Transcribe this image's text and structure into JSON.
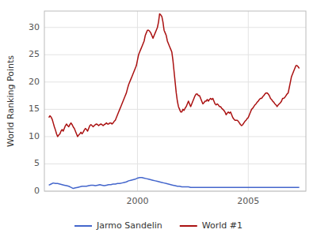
{
  "chart_data": {
    "type": "line",
    "ylabel": "World Ranking Points",
    "xlim": [
      1995.8,
      2007.6
    ],
    "xticks": [
      2000,
      2005
    ],
    "ylim": [
      0,
      33
    ],
    "yticks": [
      0,
      5,
      10,
      15,
      20,
      25,
      30
    ],
    "grid": true,
    "legend": "bottom",
    "series": [
      {
        "name": "Jarmo Sandelin",
        "color": "#4466cc",
        "x": [
          1996.0,
          1996.1,
          1996.2,
          1996.3,
          1996.4,
          1996.5,
          1996.6,
          1996.7,
          1996.8,
          1996.9,
          1997.0,
          1997.1,
          1997.2,
          1997.3,
          1997.4,
          1997.5,
          1997.6,
          1997.7,
          1997.8,
          1997.9,
          1998.0,
          1998.1,
          1998.2,
          1998.3,
          1998.4,
          1998.5,
          1998.6,
          1998.7,
          1998.8,
          1998.9,
          1999.0,
          1999.1,
          1999.2,
          1999.3,
          1999.4,
          1999.5,
          1999.6,
          1999.7,
          1999.8,
          1999.9,
          2000.0,
          2000.1,
          2000.2,
          2000.3,
          2000.4,
          2000.5,
          2000.6,
          2000.7,
          2000.8,
          2000.9,
          2001.0,
          2001.1,
          2001.2,
          2001.3,
          2001.4,
          2001.5,
          2001.6,
          2001.7,
          2001.8,
          2001.9,
          2002.0,
          2002.1,
          2002.2,
          2002.3,
          2002.4,
          2002.5,
          2002.6,
          2002.7,
          2002.8,
          2002.9,
          2003.0,
          2003.1,
          2003.2,
          2003.3,
          2003.4,
          2003.5,
          2003.6,
          2003.7,
          2003.8,
          2003.9,
          2004.0,
          2004.2,
          2004.5,
          2004.8,
          2005.0,
          2005.2,
          2005.5,
          2005.8,
          2006.0,
          2006.2,
          2006.5,
          2006.8,
          2007.0,
          2007.3
        ],
        "values": [
          1.1,
          1.3,
          1.5,
          1.4,
          1.4,
          1.3,
          1.2,
          1.1,
          1.0,
          0.9,
          0.7,
          0.5,
          0.6,
          0.7,
          0.8,
          0.9,
          0.9,
          0.9,
          1.0,
          1.1,
          1.1,
          1.0,
          1.1,
          1.2,
          1.1,
          1.0,
          1.1,
          1.2,
          1.2,
          1.3,
          1.3,
          1.4,
          1.4,
          1.5,
          1.6,
          1.7,
          1.9,
          2.0,
          2.1,
          2.2,
          2.4,
          2.5,
          2.5,
          2.4,
          2.3,
          2.2,
          2.1,
          2.0,
          1.9,
          1.8,
          1.7,
          1.6,
          1.5,
          1.4,
          1.3,
          1.2,
          1.1,
          1.0,
          0.9,
          0.9,
          0.8,
          0.8,
          0.8,
          0.8,
          0.7,
          0.7,
          0.7,
          0.7,
          0.7,
          0.7,
          0.7,
          0.7,
          0.7,
          0.7,
          0.7,
          0.7,
          0.7,
          0.7,
          0.7,
          0.7,
          0.7,
          0.7,
          0.7,
          0.7,
          0.7,
          0.7,
          0.7,
          0.7,
          0.7,
          0.7,
          0.7,
          0.7,
          0.7,
          0.7
        ]
      },
      {
        "name": "World #1",
        "color": "#aa1111",
        "x": [
          1996.0,
          1996.05,
          1996.1,
          1996.15,
          1996.2,
          1996.25,
          1996.3,
          1996.35,
          1996.4,
          1996.45,
          1996.5,
          1996.55,
          1996.6,
          1996.65,
          1996.7,
          1996.75,
          1996.8,
          1996.85,
          1996.9,
          1996.95,
          1997.0,
          1997.05,
          1997.1,
          1997.15,
          1997.2,
          1997.25,
          1997.3,
          1997.35,
          1997.4,
          1997.45,
          1997.5,
          1997.55,
          1997.6,
          1997.65,
          1997.7,
          1997.75,
          1997.8,
          1997.85,
          1997.9,
          1997.95,
          1998.0,
          1998.05,
          1998.1,
          1998.15,
          1998.2,
          1998.25,
          1998.3,
          1998.35,
          1998.4,
          1998.45,
          1998.5,
          1998.55,
          1998.6,
          1998.65,
          1998.7,
          1998.75,
          1998.8,
          1998.85,
          1998.9,
          1998.95,
          1999.0,
          1999.05,
          1999.1,
          1999.15,
          1999.2,
          1999.25,
          1999.3,
          1999.35,
          1999.4,
          1999.45,
          1999.5,
          1999.55,
          1999.6,
          1999.65,
          1999.7,
          1999.75,
          1999.8,
          1999.85,
          1999.9,
          1999.95,
          2000.0,
          2000.05,
          2000.1,
          2000.15,
          2000.2,
          2000.25,
          2000.3,
          2000.35,
          2000.4,
          2000.45,
          2000.5,
          2000.55,
          2000.6,
          2000.65,
          2000.7,
          2000.75,
          2000.8,
          2000.85,
          2000.9,
          2000.95,
          2001.0,
          2001.05,
          2001.1,
          2001.15,
          2001.2,
          2001.25,
          2001.3,
          2001.35,
          2001.4,
          2001.45,
          2001.5,
          2001.55,
          2001.6,
          2001.65,
          2001.7,
          2001.75,
          2001.8,
          2001.85,
          2001.9,
          2001.95,
          2002.0,
          2002.05,
          2002.1,
          2002.15,
          2002.2,
          2002.25,
          2002.3,
          2002.35,
          2002.4,
          2002.45,
          2002.5,
          2002.55,
          2002.6,
          2002.65,
          2002.7,
          2002.75,
          2002.8,
          2002.85,
          2002.9,
          2002.95,
          2003.0,
          2003.05,
          2003.1,
          2003.15,
          2003.2,
          2003.25,
          2003.3,
          2003.35,
          2003.4,
          2003.45,
          2003.5,
          2003.55,
          2003.6,
          2003.65,
          2003.7,
          2003.75,
          2003.8,
          2003.85,
          2003.9,
          2003.95,
          2004.0,
          2004.05,
          2004.1,
          2004.15,
          2004.2,
          2004.25,
          2004.3,
          2004.35,
          2004.4,
          2004.45,
          2004.5,
          2004.55,
          2004.6,
          2004.65,
          2004.7,
          2004.75,
          2004.8,
          2004.85,
          2004.9,
          2004.95,
          2005.0,
          2005.05,
          2005.1,
          2005.15,
          2005.2,
          2005.25,
          2005.3,
          2005.35,
          2005.4,
          2005.45,
          2005.5,
          2005.55,
          2005.6,
          2005.65,
          2005.7,
          2005.75,
          2005.8,
          2005.85,
          2005.9,
          2005.95,
          2006.0,
          2006.05,
          2006.1,
          2006.15,
          2006.2,
          2006.25,
          2006.3,
          2006.35,
          2006.4,
          2006.45,
          2006.5,
          2006.55,
          2006.6,
          2006.65,
          2006.7,
          2006.75,
          2006.8,
          2006.85,
          2006.9,
          2006.95,
          2007.0,
          2007.05,
          2007.1,
          2007.15,
          2007.2,
          2007.25,
          2007.3
        ],
        "values": [
          13.5,
          13.8,
          13.6,
          13.2,
          12.5,
          11.8,
          11.2,
          10.5,
          10.0,
          10.3,
          10.5,
          11.0,
          11.3,
          11.0,
          11.5,
          12.0,
          12.3,
          12.0,
          11.8,
          12.2,
          12.5,
          12.2,
          11.8,
          11.5,
          11.0,
          10.5,
          10.0,
          10.3,
          10.5,
          10.8,
          10.5,
          10.8,
          11.2,
          11.5,
          11.3,
          11.0,
          11.5,
          12.0,
          12.2,
          12.0,
          11.8,
          12.0,
          12.2,
          12.3,
          12.2,
          12.0,
          12.2,
          12.3,
          12.2,
          12.0,
          12.2,
          12.3,
          12.5,
          12.3,
          12.3,
          12.5,
          12.5,
          12.3,
          12.5,
          12.8,
          13.0,
          13.5,
          14.0,
          14.5,
          15.0,
          15.5,
          16.0,
          16.5,
          17.0,
          17.5,
          18.0,
          18.8,
          19.5,
          20.0,
          20.5,
          21.0,
          21.5,
          22.0,
          22.5,
          23.0,
          24.0,
          25.0,
          25.5,
          26.0,
          26.5,
          27.0,
          27.5,
          28.5,
          29.0,
          29.5,
          29.5,
          29.3,
          29.0,
          28.5,
          28.0,
          28.5,
          29.0,
          29.5,
          30.0,
          31.0,
          32.5,
          32.3,
          32.0,
          31.0,
          29.5,
          29.0,
          28.5,
          27.5,
          27.0,
          26.5,
          26.0,
          25.5,
          24.0,
          22.0,
          20.0,
          18.0,
          16.5,
          15.5,
          15.0,
          14.5,
          14.5,
          15.0,
          14.8,
          15.2,
          15.5,
          16.0,
          16.5,
          16.0,
          15.5,
          16.0,
          16.5,
          17.0,
          17.5,
          17.8,
          17.8,
          17.5,
          17.5,
          17.0,
          16.5,
          16.0,
          16.2,
          16.5,
          16.5,
          16.8,
          16.5,
          16.8,
          17.0,
          16.8,
          17.0,
          16.5,
          16.0,
          15.8,
          16.0,
          15.8,
          15.5,
          15.5,
          15.2,
          15.0,
          14.8,
          14.5,
          14.0,
          14.3,
          14.5,
          14.3,
          14.5,
          14.0,
          13.5,
          13.2,
          13.0,
          13.0,
          13.0,
          12.8,
          12.5,
          12.2,
          12.0,
          12.2,
          12.5,
          12.8,
          13.0,
          13.3,
          13.5,
          14.0,
          14.5,
          15.0,
          15.2,
          15.5,
          15.8,
          16.0,
          16.3,
          16.5,
          16.8,
          17.0,
          17.0,
          17.3,
          17.5,
          17.8,
          18.0,
          18.0,
          17.8,
          17.5,
          17.0,
          16.8,
          16.5,
          16.3,
          16.0,
          15.8,
          15.5,
          15.8,
          16.0,
          16.2,
          16.5,
          17.0,
          17.0,
          17.2,
          17.5,
          17.8,
          18.0,
          19.0,
          20.0,
          21.0,
          21.5,
          22.0,
          22.5,
          23.0,
          23.0,
          22.8,
          22.5
        ]
      }
    ]
  }
}
